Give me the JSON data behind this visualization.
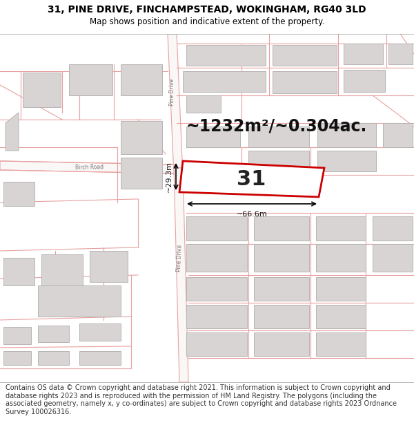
{
  "title_line1": "31, PINE DRIVE, FINCHAMPSTEAD, WOKINGHAM, RG40 3LD",
  "title_line2": "Map shows position and indicative extent of the property.",
  "footer_text": "Contains OS data © Crown copyright and database right 2021. This information is subject to Crown copyright and database rights 2023 and is reproduced with the permission of HM Land Registry. The polygons (including the associated geometry, namely x, y co-ordinates) are subject to Crown copyright and database rights 2023 Ordnance Survey 100026316.",
  "area_label": "~1232m²/~0.304ac.",
  "width_label": "~66.6m",
  "height_label": "~29.3m",
  "plot_number": "31",
  "map_bg": "#ffffff",
  "road_color": "#e8a0a0",
  "building_color": "#d8d4d4",
  "building_edge": "#b8b4b4",
  "plot_fill": "#ffffff",
  "plot_edge": "#cc0000",
  "title_fontsize": 10,
  "footer_fontsize": 7.0,
  "area_fontsize": 17,
  "plot_num_fontsize": 22
}
